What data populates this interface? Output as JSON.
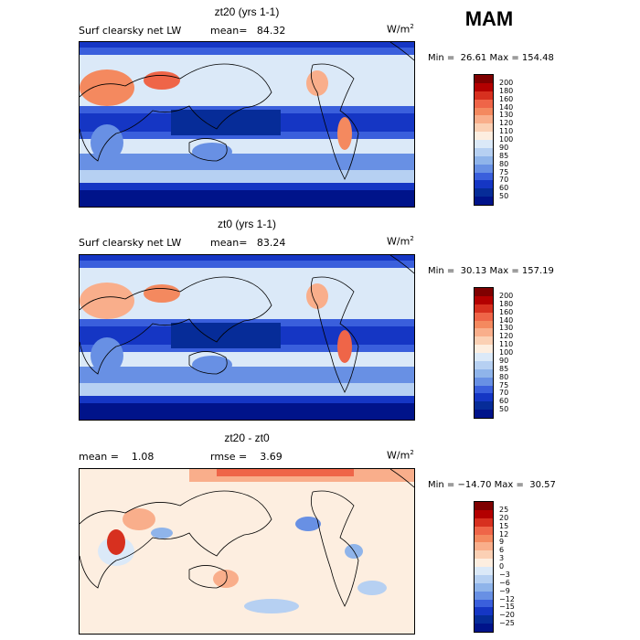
{
  "season": "MAM",
  "panels": [
    {
      "title": "zt20 (yrs 1-1)",
      "left_label": "Surf clearsky net LW",
      "mean_label": "mean=   84.32",
      "units": "W/m",
      "units_sup": "2",
      "minmax": "Min =  26.61 Max = 154.48",
      "colorbar": {
        "levels": [
          "200",
          "180",
          "160",
          "140",
          "130",
          "120",
          "110",
          "100",
          "90",
          "85",
          "80",
          "75",
          "70",
          "60",
          "50"
        ],
        "colors": [
          "#7f0000",
          "#b30000",
          "#d7301f",
          "#ef6548",
          "#f4895f",
          "#f9ae8b",
          "#fbd0b4",
          "#fdeee0",
          "#dbe9f8",
          "#b6d0f2",
          "#8fb4ea",
          "#6890e4",
          "#3a5fdc",
          "#1536c4",
          "#062c98",
          "#00138a"
        ]
      }
    },
    {
      "title": "zt0 (yrs 1-1)",
      "left_label": "Surf clearsky net LW",
      "mean_label": "mean=   83.24",
      "units": "W/m",
      "units_sup": "2",
      "minmax": "Min =  30.13 Max = 157.19",
      "colorbar": {
        "levels": [
          "200",
          "180",
          "160",
          "140",
          "130",
          "120",
          "110",
          "100",
          "90",
          "85",
          "80",
          "75",
          "70",
          "60",
          "50"
        ],
        "colors": [
          "#7f0000",
          "#b30000",
          "#d7301f",
          "#ef6548",
          "#f4895f",
          "#f9ae8b",
          "#fbd0b4",
          "#fdeee0",
          "#dbe9f8",
          "#b6d0f2",
          "#8fb4ea",
          "#6890e4",
          "#3a5fdc",
          "#1536c4",
          "#062c98",
          "#00138a"
        ]
      }
    },
    {
      "title": "zt20 - zt0",
      "left_label": "mean =    1.08",
      "mean_label": "rmse =    3.69",
      "units": "W/m",
      "units_sup": "2",
      "minmax": "Min = −14.70 Max =  30.57",
      "colorbar": {
        "levels": [
          "25",
          "20",
          "15",
          "12",
          "9",
          "6",
          "3",
          "0",
          "−3",
          "−6",
          "−9",
          "−12",
          "−15",
          "−20",
          "−25"
        ],
        "colors": [
          "#7f0000",
          "#b30000",
          "#d7301f",
          "#ef6548",
          "#f4895f",
          "#f9ae8b",
          "#fbd0b4",
          "#fdeee0",
          "#dbe9f8",
          "#b6d0f2",
          "#8fb4ea",
          "#6890e4",
          "#3a5fdc",
          "#1536c4",
          "#062c98",
          "#00138a"
        ]
      }
    }
  ]
}
